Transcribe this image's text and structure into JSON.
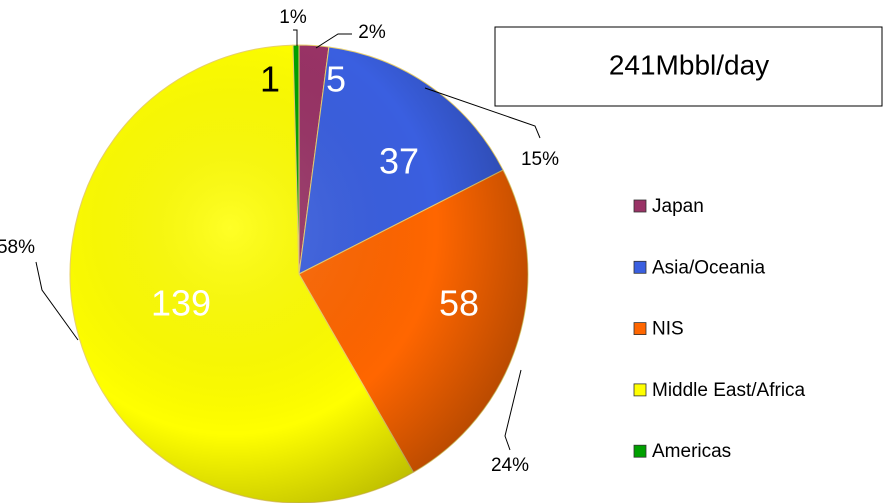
{
  "chart_data": {
    "type": "pie",
    "title": "241Mbbl/day",
    "categories": [
      "Japan",
      "Asia/Oceania",
      "NIS",
      "Middle East/Africa",
      "Americas"
    ],
    "values": [
      5,
      37,
      58,
      139,
      1
    ],
    "percent_labels": [
      "2%",
      "15%",
      "24%",
      "58%",
      "1%"
    ],
    "colors": [
      "#993366",
      "#3a5fe0",
      "#ff6600",
      "#ffff00",
      "#00a000"
    ],
    "legend": "right"
  }
}
